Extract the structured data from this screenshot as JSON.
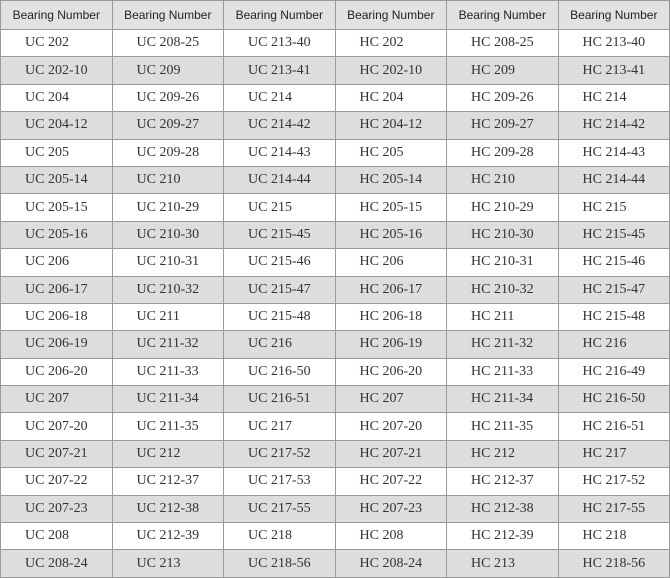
{
  "table": {
    "headers": [
      "Bearing Number",
      "Bearing Number",
      "Bearing Number",
      "Bearing Number",
      "Bearing Number",
      "Bearing Number"
    ],
    "rows": [
      [
        "UC 202",
        "UC 208-25",
        "UC 213-40",
        "HC 202",
        "HC 208-25",
        "HC 213-40"
      ],
      [
        "UC 202-10",
        "UC 209",
        "UC 213-41",
        "HC 202-10",
        "HC 209",
        "HC 213-41"
      ],
      [
        "UC 204",
        "UC 209-26",
        "UC 214",
        "HC 204",
        "HC 209-26",
        "HC 214"
      ],
      [
        "UC 204-12",
        "UC 209-27",
        "UC 214-42",
        "HC 204-12",
        "HC 209-27",
        "HC 214-42"
      ],
      [
        "UC 205",
        "UC 209-28",
        "UC 214-43",
        "HC 205",
        "HC 209-28",
        "HC 214-43"
      ],
      [
        "UC 205-14",
        "UC 210",
        "UC 214-44",
        "HC 205-14",
        "HC 210",
        "HC 214-44"
      ],
      [
        "UC 205-15",
        "UC 210-29",
        "UC 215",
        "HC 205-15",
        "HC 210-29",
        "HC 215"
      ],
      [
        "UC 205-16",
        "UC 210-30",
        "UC 215-45",
        "HC 205-16",
        "HC 210-30",
        "HC 215-45"
      ],
      [
        "UC 206",
        "UC 210-31",
        "UC 215-46",
        "HC 206",
        "HC 210-31",
        "HC 215-46"
      ],
      [
        "UC 206-17",
        "UC 210-32",
        "UC 215-47",
        "HC 206-17",
        "HC 210-32",
        "HC 215-47"
      ],
      [
        "UC 206-18",
        "UC 211",
        "UC 215-48",
        "HC 206-18",
        "HC 211",
        "HC 215-48"
      ],
      [
        "UC 206-19",
        "UC 211-32",
        "UC 216",
        "HC 206-19",
        "HC 211-32",
        "HC 216"
      ],
      [
        "UC 206-20",
        "UC 211-33",
        "UC 216-50",
        "HC 206-20",
        "HC 211-33",
        "HC 216-49"
      ],
      [
        "UC 207",
        "UC 211-34",
        "UC 216-51",
        "HC 207",
        "HC 211-34",
        "HC 216-50"
      ],
      [
        "UC 207-20",
        "UC 211-35",
        "UC 217",
        "HC 207-20",
        "HC 211-35",
        "HC 216-51"
      ],
      [
        "UC 207-21",
        "UC 212",
        "UC 217-52",
        "HC 207-21",
        "HC 212",
        "HC 217"
      ],
      [
        "UC 207-22",
        "UC 212-37",
        "UC 217-53",
        "HC 207-22",
        "HC 212-37",
        "HC 217-52"
      ],
      [
        "UC 207-23",
        "UC 212-38",
        "UC 217-55",
        "HC 207-23",
        "HC 212-38",
        "HC 217-55"
      ],
      [
        "UC 208",
        "UC 212-39",
        "UC 218",
        "HC 208",
        "HC 212-39",
        "HC 218"
      ],
      [
        "UC 208-24",
        "UC 213",
        "UC 218-56",
        "HC 208-24",
        "HC 213",
        "HC 218-56"
      ]
    ]
  },
  "colors": {
    "header_bg": "#e2e2e2",
    "alt_row_bg": "#dddddd",
    "row_bg": "#ffffff",
    "border": "#9a9a9a"
  }
}
